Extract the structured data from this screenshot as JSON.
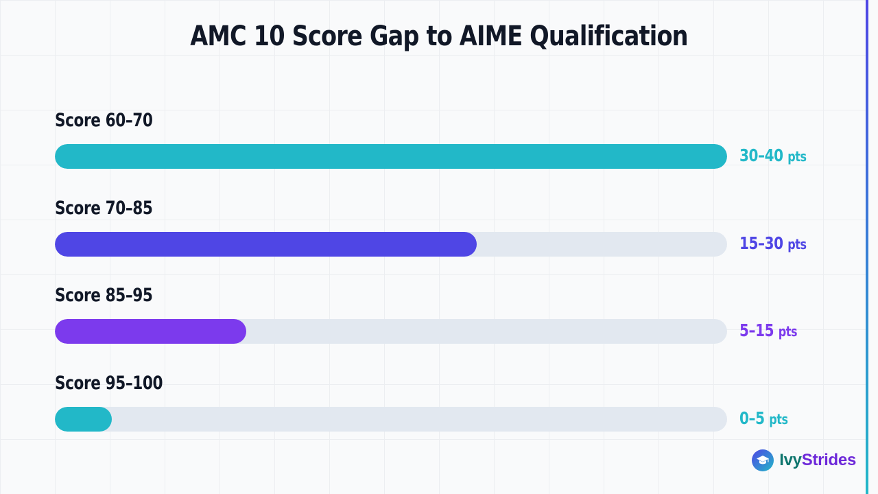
{
  "chart_data": {
    "type": "bar",
    "orientation": "horizontal",
    "title": "AMC 10 Score Gap to AIME Qualification",
    "categories": [
      "Score 60–70",
      "Score 70–85",
      "Score 85–95",
      "Score 95–100"
    ],
    "value_labels": [
      "30–40",
      "15–30",
      "5–15",
      "0–5"
    ],
    "unit": "pts",
    "values": [
      40,
      25.1,
      11.4,
      3.4
    ],
    "xlim": [
      0,
      40
    ],
    "colors": [
      "#22b8c8",
      "#4f46e5",
      "#7c3aed",
      "#22b8c8"
    ],
    "track_color": "#e2e8f0",
    "grid": false,
    "legend": "none"
  },
  "brand": {
    "name_part1": "Ivy",
    "name_part2": "Strides",
    "icon": "graduation-cap-icon"
  }
}
